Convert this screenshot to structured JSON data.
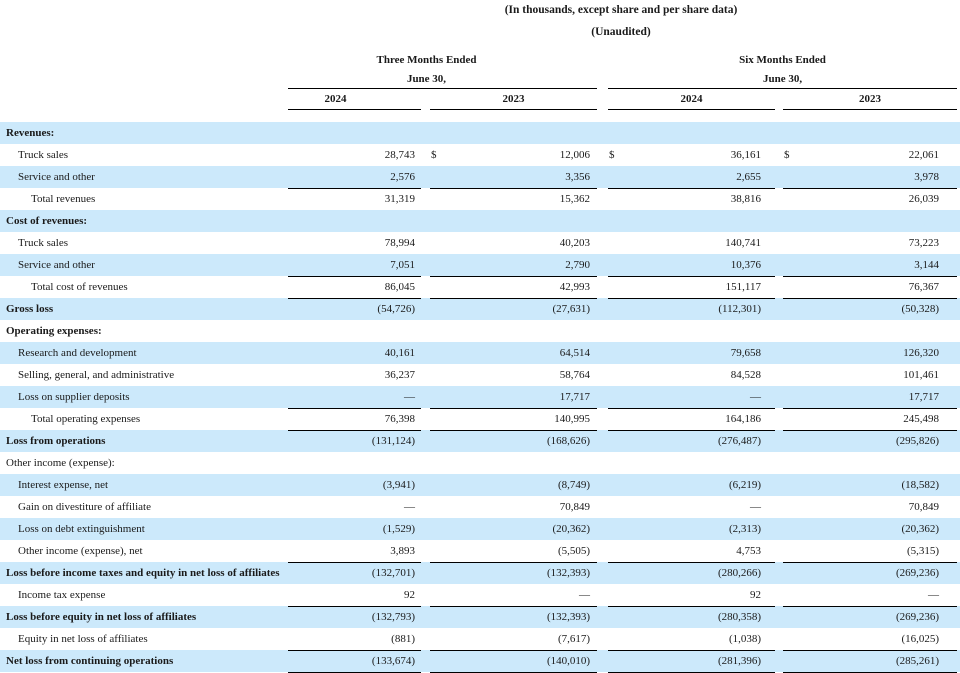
{
  "page": {
    "note1": "(In thousands, except share and per share data)",
    "note2": "(Unaudited)"
  },
  "header": {
    "group1": {
      "line1": "Three Months Ended",
      "line2": "June 30,",
      "col1": "2024",
      "col2": "2023"
    },
    "group2": {
      "line1": "Six Months Ended",
      "line2": "June 30,",
      "col1": "2024",
      "col2": "2023"
    }
  },
  "table": {
    "columns": [
      "Three Months Ended June 30, 2024",
      "Three Months Ended June 30, 2023",
      "Six Months Ended June 30, 2024",
      "Six Months Ended June 30, 2023"
    ],
    "rows": [
      {
        "label": "Revenues:",
        "indent": 0,
        "bold": true,
        "band": true,
        "rule": false,
        "values": [
          "",
          "",
          "",
          ""
        ]
      },
      {
        "label": "Truck sales",
        "indent": 1,
        "bold": false,
        "band": false,
        "rule": false,
        "dollars": [
          "",
          "$",
          "$",
          "$"
        ],
        "values": [
          "28,743",
          "12,006",
          "36,161",
          "22,061"
        ]
      },
      {
        "label": "Service and other",
        "indent": 1,
        "bold": false,
        "band": true,
        "rule": true,
        "values": [
          "2,576",
          "3,356",
          "2,655",
          "3,978"
        ]
      },
      {
        "label": "Total revenues",
        "indent": 2,
        "bold": false,
        "band": false,
        "rule": false,
        "values": [
          "31,319",
          "15,362",
          "38,816",
          "26,039"
        ]
      },
      {
        "label": "Cost of revenues:",
        "indent": 0,
        "bold": true,
        "band": true,
        "rule": false,
        "values": [
          "",
          "",
          "",
          ""
        ]
      },
      {
        "label": "Truck sales",
        "indent": 1,
        "bold": false,
        "band": false,
        "rule": false,
        "values": [
          "78,994",
          "40,203",
          "140,741",
          "73,223"
        ]
      },
      {
        "label": "Service and other",
        "indent": 1,
        "bold": false,
        "band": true,
        "rule": true,
        "values": [
          "7,051",
          "2,790",
          "10,376",
          "3,144"
        ]
      },
      {
        "label": "Total cost of revenues",
        "indent": 2,
        "bold": false,
        "band": false,
        "rule": true,
        "values": [
          "86,045",
          "42,993",
          "151,117",
          "76,367"
        ]
      },
      {
        "label": "Gross loss",
        "indent": 0,
        "bold": true,
        "band": true,
        "rule": false,
        "values": [
          "(54,726)",
          "(27,631)",
          "(112,301)",
          "(50,328)"
        ]
      },
      {
        "label": "Operating expenses:",
        "indent": 0,
        "bold": true,
        "band": false,
        "rule": false,
        "values": [
          "",
          "",
          "",
          ""
        ]
      },
      {
        "label": "Research and development",
        "indent": 1,
        "bold": false,
        "band": true,
        "rule": false,
        "values": [
          "40,161",
          "64,514",
          "79,658",
          "126,320"
        ]
      },
      {
        "label": "Selling, general, and administrative",
        "indent": 1,
        "bold": false,
        "band": false,
        "rule": false,
        "values": [
          "36,237",
          "58,764",
          "84,528",
          "101,461"
        ]
      },
      {
        "label": "Loss on supplier deposits",
        "indent": 1,
        "bold": false,
        "band": true,
        "rule": true,
        "values": [
          "—",
          "17,717",
          "—",
          "17,717"
        ]
      },
      {
        "label": "Total operating expenses",
        "indent": 2,
        "bold": false,
        "band": false,
        "rule": true,
        "values": [
          "76,398",
          "140,995",
          "164,186",
          "245,498"
        ]
      },
      {
        "label": "Loss from operations",
        "indent": 0,
        "bold": true,
        "band": true,
        "rule": false,
        "values": [
          "(131,124)",
          "(168,626)",
          "(276,487)",
          "(295,826)"
        ]
      },
      {
        "label": "Other income (expense):",
        "indent": 0,
        "bold": false,
        "band": false,
        "rule": false,
        "values": [
          "",
          "",
          "",
          ""
        ]
      },
      {
        "label": "Interest expense, net",
        "indent": 1,
        "bold": false,
        "band": true,
        "rule": false,
        "values": [
          "(3,941)",
          "(8,749)",
          "(6,219)",
          "(18,582)"
        ]
      },
      {
        "label": "Gain on divestiture of affiliate",
        "indent": 1,
        "bold": false,
        "band": false,
        "rule": false,
        "values": [
          "—",
          "70,849",
          "—",
          "70,849"
        ]
      },
      {
        "label": "Loss on debt extinguishment",
        "indent": 1,
        "bold": false,
        "band": true,
        "rule": false,
        "values": [
          "(1,529)",
          "(20,362)",
          "(2,313)",
          "(20,362)"
        ]
      },
      {
        "label": "Other income (expense), net",
        "indent": 1,
        "bold": false,
        "band": false,
        "rule": true,
        "values": [
          "3,893",
          "(5,505)",
          "4,753",
          "(5,315)"
        ]
      },
      {
        "label": "Loss before income taxes and equity in net loss of affiliates",
        "indent": 0,
        "bold": true,
        "band": true,
        "rule": false,
        "values": [
          "(132,701)",
          "(132,393)",
          "(280,266)",
          "(269,236)"
        ]
      },
      {
        "label": "Income tax expense",
        "indent": 1,
        "bold": false,
        "band": false,
        "rule": true,
        "values": [
          "92",
          "—",
          "92",
          "—"
        ]
      },
      {
        "label": "Loss before equity in net loss of affiliates",
        "indent": 0,
        "bold": true,
        "band": true,
        "rule": false,
        "values": [
          "(132,793)",
          "(132,393)",
          "(280,358)",
          "(269,236)"
        ]
      },
      {
        "label": "Equity in net loss of affiliates",
        "indent": 1,
        "bold": false,
        "band": false,
        "rule": true,
        "values": [
          "(881)",
          "(7,617)",
          "(1,038)",
          "(16,025)"
        ]
      },
      {
        "label": "Net loss from continuing operations",
        "indent": 0,
        "bold": true,
        "band": true,
        "rule": true,
        "values": [
          "(133,674)",
          "(140,010)",
          "(281,396)",
          "(285,261)"
        ]
      }
    ]
  },
  "colors": {
    "band_blue": "#cce9fb",
    "text": "#1a1a1a",
    "rule_line": "#000000"
  }
}
